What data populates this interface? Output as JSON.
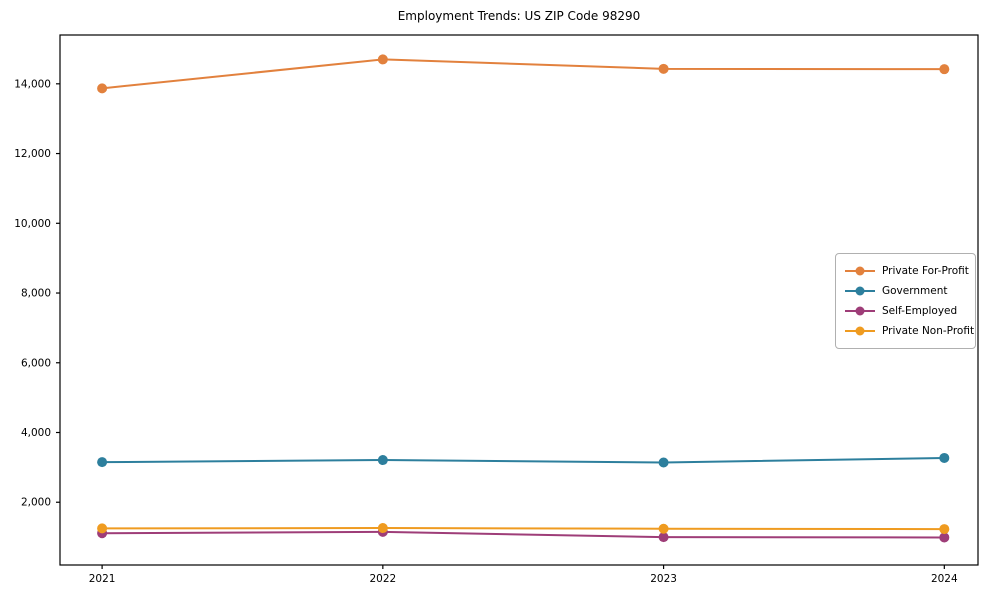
{
  "chart_data": {
    "type": "line",
    "title": "Employment Trends: US ZIP Code 98290",
    "x": [
      2021,
      2022,
      2023,
      2024
    ],
    "x_tick_labels": [
      "2021",
      "2022",
      "2023",
      "2024"
    ],
    "series": [
      {
        "name": "Private For-Profit",
        "color": "#e2813d",
        "values": [
          13870,
          14700,
          14430,
          14420
        ]
      },
      {
        "name": "Government",
        "color": "#2d7f9d",
        "values": [
          3150,
          3210,
          3140,
          3270
        ]
      },
      {
        "name": "Self-Employed",
        "color": "#9e3d78",
        "values": [
          1110,
          1150,
          1000,
          990
        ]
      },
      {
        "name": "Private Non-Profit",
        "color": "#ef9b20",
        "values": [
          1250,
          1260,
          1240,
          1230
        ]
      }
    ],
    "xlim": [
      2020.85,
      2024.12
    ],
    "ylim": [
      200,
      15400
    ],
    "yticks": [
      2000,
      4000,
      6000,
      8000,
      10000,
      12000,
      14000
    ],
    "ytick_labels": [
      "2,000",
      "4,000",
      "6,000",
      "8,000",
      "10,000",
      "12,000",
      "14,000"
    ],
    "xlabel": "",
    "ylabel": "",
    "grid": false,
    "legend_position": "center right",
    "marker": "o",
    "line_width": 2,
    "marker_radius": 5,
    "axis_color": "#000000",
    "background": "#ffffff"
  }
}
